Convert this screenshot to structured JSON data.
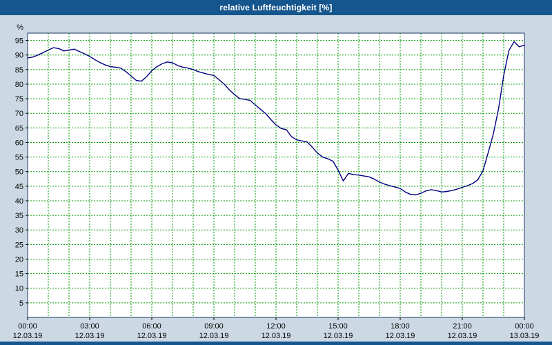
{
  "window": {
    "title": "relative Luftfeuchtigkeit [%]"
  },
  "colors": {
    "titlebar": "#16568e",
    "window_background": "#ccd9e4"
  },
  "chart_data": {
    "type": "line",
    "title": "relative Luftfeuchtigkeit [%]",
    "ylabel": "%",
    "x_unit": "hours_since_2019-03-12_00:00",
    "ylim": [
      0,
      97.5
    ],
    "grid": true,
    "legend": false,
    "line_color": "#000080",
    "grid_color": "#009900",
    "border_color": "#16355e",
    "plot_bg": "#ffffff",
    "yticks": [
      5,
      10,
      15,
      20,
      25,
      30,
      35,
      40,
      45,
      50,
      55,
      60,
      65,
      70,
      75,
      80,
      85,
      90,
      95
    ],
    "xticks": [
      {
        "hour": 0,
        "time": "00:00",
        "date": "12.03.19"
      },
      {
        "hour": 3,
        "time": "03:00",
        "date": "12.03.19"
      },
      {
        "hour": 6,
        "time": "06:00",
        "date": "12.03.19"
      },
      {
        "hour": 9,
        "time": "09:00",
        "date": "12.03.19"
      },
      {
        "hour": 12,
        "time": "12:00",
        "date": "12.03.19"
      },
      {
        "hour": 15,
        "time": "15:00",
        "date": "12.03.19"
      },
      {
        "hour": 18,
        "time": "18:00",
        "date": "12.03.19"
      },
      {
        "hour": 21,
        "time": "21:00",
        "date": "12.03.19"
      },
      {
        "hour": 24,
        "time": "00:00",
        "date": "13.03.19"
      }
    ],
    "x": [
      0,
      0.25,
      0.5,
      0.75,
      1,
      1.25,
      1.5,
      1.75,
      2,
      2.25,
      2.5,
      2.75,
      3,
      3.25,
      3.5,
      3.75,
      4,
      4.25,
      4.5,
      4.75,
      5,
      5.25,
      5.5,
      5.75,
      6,
      6.25,
      6.5,
      6.75,
      7,
      7.25,
      7.5,
      7.75,
      8,
      8.25,
      8.5,
      8.75,
      9,
      9.25,
      9.5,
      9.75,
      10,
      10.25,
      10.5,
      10.75,
      11,
      11.25,
      11.5,
      11.75,
      12,
      12.25,
      12.5,
      12.75,
      13,
      13.25,
      13.5,
      13.75,
      14,
      14.25,
      14.5,
      14.75,
      15,
      15.25,
      15.5,
      15.75,
      16,
      16.25,
      16.5,
      16.75,
      17,
      17.25,
      17.5,
      17.75,
      18,
      18.25,
      18.5,
      18.75,
      19,
      19.25,
      19.5,
      19.75,
      20,
      20.25,
      20.5,
      20.75,
      21,
      21.25,
      21.5,
      21.75,
      22,
      22.25,
      22.5,
      22.75,
      23,
      23.25,
      23.5,
      23.75,
      24
    ],
    "values": [
      89,
      89.3,
      90,
      90.8,
      91.7,
      92.5,
      92.2,
      91.4,
      91.7,
      92,
      91.2,
      90.4,
      89.5,
      88.4,
      87.4,
      86.6,
      86,
      85.8,
      85.5,
      84.3,
      82.8,
      81.3,
      81,
      82.6,
      84.6,
      86,
      87,
      87.6,
      87.3,
      86.4,
      85.8,
      85.5,
      85,
      84.3,
      83.8,
      83.3,
      83,
      81.5,
      80,
      78,
      76.4,
      75,
      74.8,
      74.4,
      72.9,
      71.4,
      69.9,
      67.9,
      66,
      64.8,
      64.4,
      62,
      60.9,
      60.5,
      60.2,
      58.4,
      56.4,
      55,
      54.4,
      53.6,
      50.5,
      46.8,
      49.4,
      49,
      48.8,
      48.5,
      48.2,
      47.4,
      46.4,
      45.7,
      45.2,
      44.7,
      44.2,
      43,
      42.2,
      42,
      42.6,
      43.4,
      43.8,
      43.5,
      43,
      43.2,
      43.5,
      44,
      44.6,
      45.2,
      45.9,
      47.2,
      50.3,
      56.5,
      63,
      71.5,
      83,
      91.5,
      94.6,
      92.8,
      93.4
    ]
  }
}
